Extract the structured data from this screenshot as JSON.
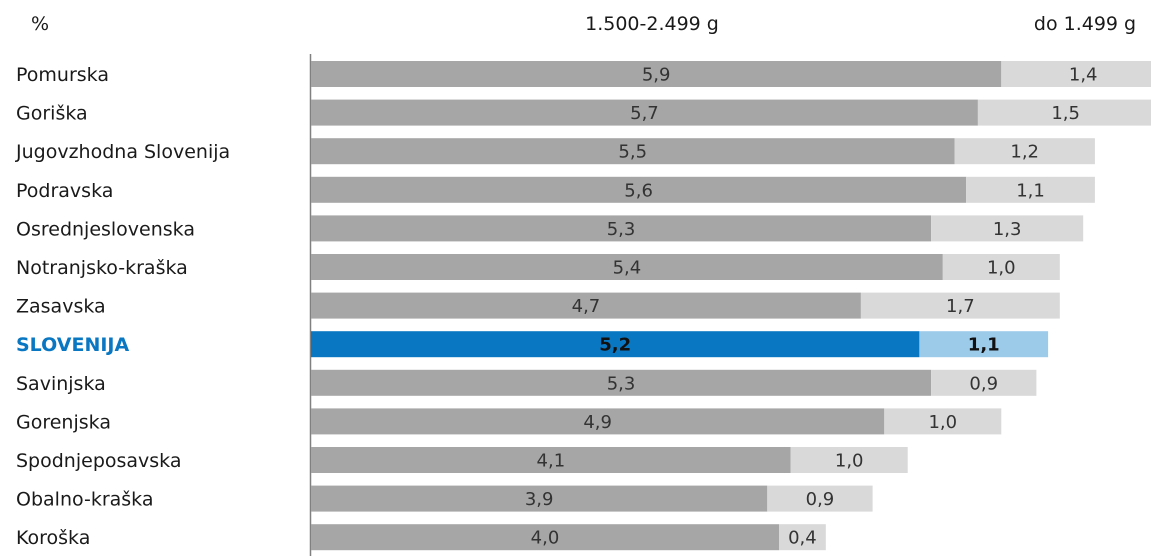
{
  "chart_data": {
    "type": "bar",
    "orientation": "horizontal",
    "stacked": true,
    "unit_label": "%",
    "categories": [
      "Pomurska",
      "Goriška",
      "Jugovzhodna Slovenija",
      "Podravska",
      "Osrednjeslovenska",
      "Notranjsko-kraška",
      "Zasavska",
      "SLOVENIJA",
      "Savinjska",
      "Gorenjska",
      "Spodnjeposavska",
      "Obalno-kraška",
      "Koroška"
    ],
    "highlight": "SLOVENIJA",
    "series": [
      {
        "name": "1.500-2.499  g",
        "color": "#a6a6a6",
        "highlight_color": "#0a77c2",
        "values": [
          5.9,
          5.7,
          5.5,
          5.6,
          5.3,
          5.4,
          4.7,
          5.2,
          5.3,
          4.9,
          4.1,
          3.9,
          4.0
        ],
        "labels": [
          "5,9",
          "5,7",
          "5,5",
          "5,6",
          "5,3",
          "5,4",
          "4,7",
          "5,2",
          "5,3",
          "4,9",
          "4,1",
          "3,9",
          "4,0"
        ]
      },
      {
        "name": "do 1.499  g",
        "color": "#d9d9d9",
        "highlight_color": "#9ccbe9",
        "values": [
          1.4,
          1.5,
          1.2,
          1.1,
          1.3,
          1.0,
          1.7,
          1.1,
          0.9,
          1.0,
          1.0,
          0.9,
          0.4
        ],
        "labels": [
          "1,4",
          "1,5",
          "1,2",
          "1,1",
          "1,3",
          "1,0",
          "1,7",
          "1,1",
          "0,9",
          "1,0",
          "1,0",
          "0,9",
          "0,4"
        ]
      }
    ],
    "legend_position": "top",
    "grid": false,
    "xlim": [
      0,
      7.3
    ]
  }
}
